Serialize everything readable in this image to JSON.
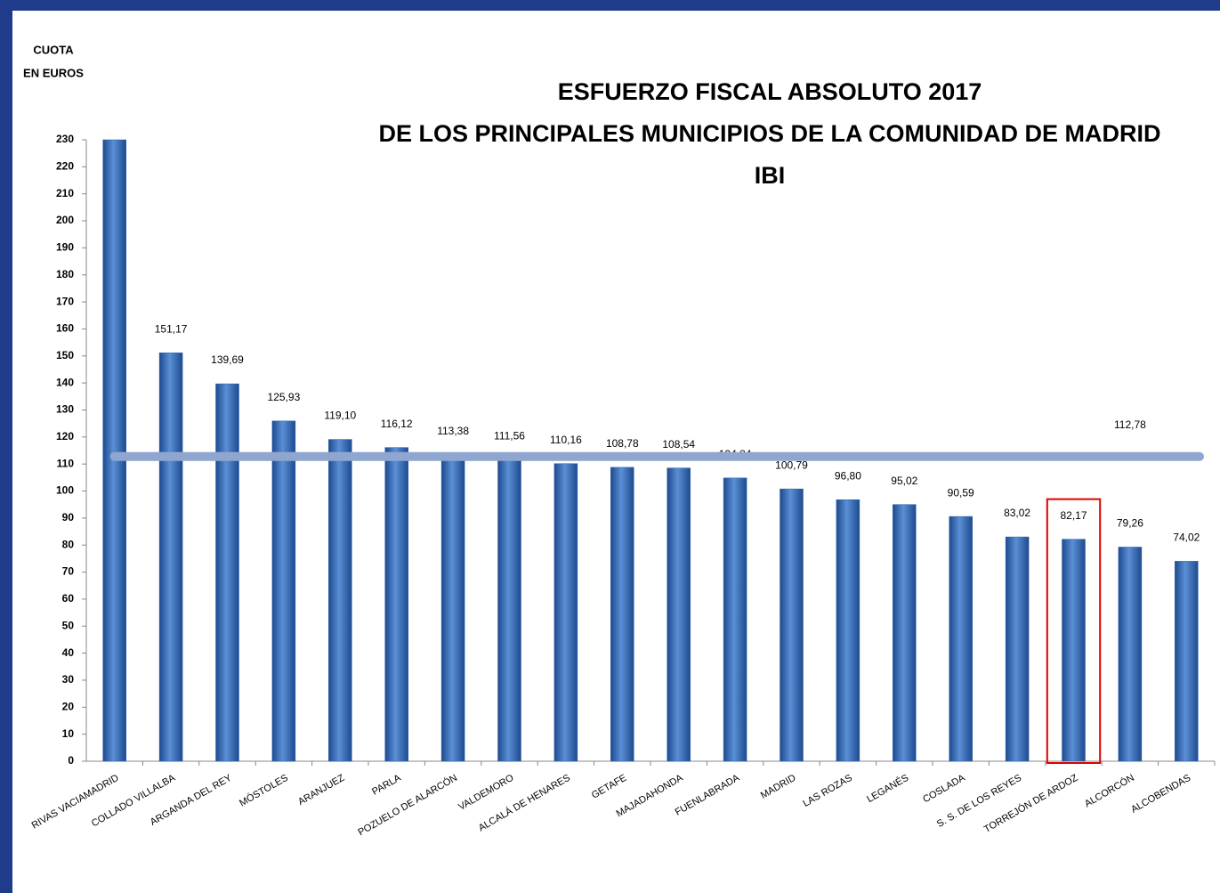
{
  "chart_data": {
    "type": "bar",
    "title": [
      "ESFUERZO FISCAL ABSOLUTO 2017",
      "DE LOS PRINCIPALES MUNICIPIOS DE LA COMUNIDAD DE MADRID",
      "IBI"
    ],
    "ylabel": [
      "CUOTA",
      "EN EUROS"
    ],
    "categories": [
      "RIVAS VACIAMADRID",
      "COLLADO VILLALBA",
      "ARGANDA DEL REY",
      "MÓSTOLES",
      "ARANJUEZ",
      "PARLA",
      "POZUELO DE ALARCÓN",
      "VALDEMORO",
      "ALCALÁ DE HENARES",
      "GETAFE",
      "MAJADAHONDA",
      "FUENLABRADA",
      "MADRID",
      "LAS ROZAS",
      "LEGANÉS",
      "COSLADA",
      "S. S. DE LOS REYES",
      "TORREJÓN DE ARDOZ",
      "ALCORCÓN",
      "ALCOBENDAS"
    ],
    "values": [
      230,
      151.17,
      139.69,
      125.93,
      119.1,
      116.12,
      113.38,
      111.56,
      110.16,
      108.78,
      108.54,
      104.84,
      100.79,
      96.8,
      95.02,
      90.59,
      83.02,
      82.17,
      79.26,
      74.02
    ],
    "value_labels": [
      null,
      "151,17",
      "139,69",
      "125,93",
      "119,10",
      "116,12",
      "113,38",
      "111,56",
      "110,16",
      "108,78",
      "108,54",
      "104,84",
      "100,79",
      "96,80",
      "95,02",
      "90,59",
      "83,02",
      "82,17",
      "79,26",
      "74,02"
    ],
    "color": "#2f63ad",
    "average": {
      "value": 112.78,
      "label": "112,78",
      "color": "#8fa7d0"
    },
    "highlight": 17,
    "highlight_color": "#e00000",
    "ylim": [
      0,
      230
    ],
    "yticks": [
      0,
      10,
      20,
      30,
      40,
      50,
      60,
      70,
      80,
      90,
      100,
      110,
      120,
      130,
      140,
      150,
      160,
      170,
      180,
      190,
      200,
      210,
      220,
      230
    ]
  }
}
